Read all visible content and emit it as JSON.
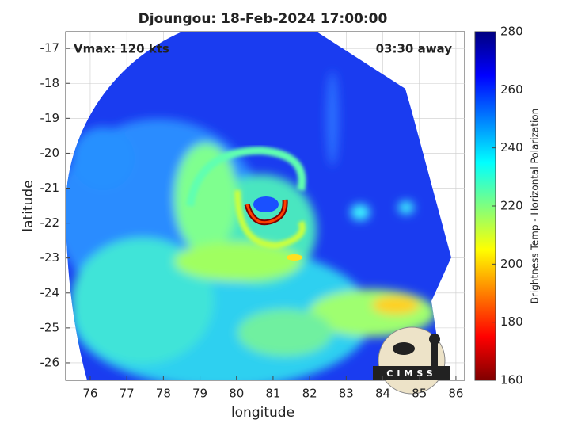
{
  "chart_data": {
    "type": "image",
    "title": "Djoungou: 18-Feb-2024 17:00:00",
    "annotations": [
      "Vmax: 120 kts",
      "03:30 away"
    ],
    "x_label": "longitude",
    "y_label": "latitude",
    "xlim": [
      75.33,
      86.24
    ],
    "ylim": [
      -26.5,
      -16.52
    ],
    "xticks": [
      76,
      77,
      78,
      79,
      80,
      81,
      82,
      83,
      84,
      85,
      86
    ],
    "yticks": [
      -17,
      -18,
      -19,
      -20,
      -21,
      -22,
      -23,
      -24,
      -25,
      -26
    ],
    "grid": true,
    "colorbar": {
      "label": "Brightness Temp - Horizontal Polarization",
      "lim": [
        160,
        280
      ],
      "ticks": [
        160,
        180,
        200,
        220,
        240,
        260,
        280
      ],
      "colormap": [
        "#7f0000",
        "#ff0000",
        "#ff7f00",
        "#ffff00",
        "#7fff7f",
        "#00ffff",
        "#007fff",
        "#0000ff",
        "#00007f"
      ]
    }
  },
  "logo": "CIMSS"
}
